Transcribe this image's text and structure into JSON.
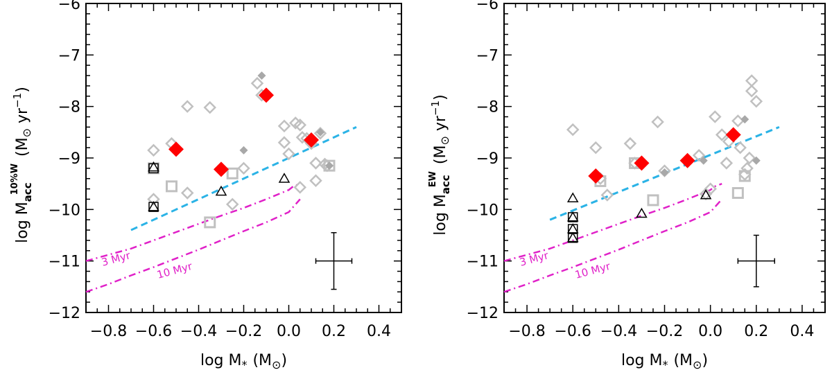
{
  "chart_data": [
    {
      "type": "scatter",
      "panel": "left",
      "xlabel_main": "log M",
      "xlabel_sub": "*",
      "xlabel_unit": "(M",
      "xlabel_unit_sub": "⊙",
      "xlabel_unit_end": ")",
      "ylabel_main": "log M",
      "ylabel_sub": "acc",
      "ylabel_sup": "10%W",
      "ylabel_unit": "(M",
      "ylabel_unit_sub": "⊙",
      "ylabel_unit_end": " yr",
      "ylabel_unit_exp": "−1",
      "ylabel_close": ")",
      "xlim": [
        -0.9,
        0.5
      ],
      "ylim": [
        -12,
        -6
      ],
      "xticks": [
        -0.8,
        -0.6,
        -0.4,
        -0.2,
        0.0,
        0.2,
        0.4
      ],
      "xtick_labels": [
        "−0.8",
        "−0.6",
        "−0.4",
        "−0.2",
        "0.0",
        "0.2",
        "0.4"
      ],
      "yticks": [
        -12,
        -11,
        -10,
        -9,
        -8,
        -7,
        -6
      ],
      "ytick_labels": [
        "−12",
        "−11",
        "−10",
        "−9",
        "−8",
        "−7",
        "−6"
      ],
      "red_diamonds": [
        [
          -0.5,
          -8.83
        ],
        [
          -0.3,
          -9.22
        ],
        [
          -0.1,
          -7.78
        ],
        [
          0.1,
          -8.65
        ]
      ],
      "gray_open_diamonds": [
        [
          -0.6,
          -8.85
        ],
        [
          -0.6,
          -9.8
        ],
        [
          -0.52,
          -8.72
        ],
        [
          -0.45,
          -8.0
        ],
        [
          -0.45,
          -9.68
        ],
        [
          -0.35,
          -8.02
        ],
        [
          -0.25,
          -9.9
        ],
        [
          -0.2,
          -9.2
        ],
        [
          -0.14,
          -7.55
        ],
        [
          -0.12,
          -7.78
        ],
        [
          -0.02,
          -8.7
        ],
        [
          -0.02,
          -8.38
        ],
        [
          0.0,
          -8.92
        ],
        [
          0.03,
          -8.32
        ],
        [
          0.05,
          -8.36
        ],
        [
          0.06,
          -8.6
        ],
        [
          0.08,
          -8.62
        ],
        [
          0.1,
          -8.72
        ],
        [
          0.12,
          -9.1
        ],
        [
          0.14,
          -8.52
        ],
        [
          0.16,
          -9.12
        ],
        [
          0.17,
          -9.15
        ],
        [
          0.12,
          -9.44
        ],
        [
          0.05,
          -9.57
        ]
      ],
      "gray_filled_diamonds": [
        [
          -0.12,
          -7.4
        ],
        [
          -0.2,
          -8.85
        ],
        [
          0.14,
          -8.5
        ],
        [
          0.18,
          -9.15
        ]
      ],
      "gray_squares": [
        [
          -0.6,
          -9.2
        ],
        [
          -0.52,
          -9.55
        ],
        [
          -0.35,
          -10.25
        ],
        [
          -0.25,
          -9.3
        ],
        [
          0.18,
          -9.15
        ]
      ],
      "black_squares": [
        [
          -0.6,
          -9.2
        ],
        [
          -0.6,
          -9.95
        ]
      ],
      "black_triangles": [
        [
          -0.6,
          -9.18
        ],
        [
          -0.6,
          -9.95
        ],
        [
          -0.3,
          -9.65
        ],
        [
          -0.02,
          -9.4
        ]
      ],
      "fit_line": {
        "color": "#2bb3e6",
        "x": [
          -0.7,
          0.3
        ],
        "y": [
          -10.4,
          -8.4
        ]
      },
      "isochrones": [
        {
          "name": "3 Myr",
          "label": "3 Myr",
          "color": "#e020c8",
          "x": [
            -0.9,
            -0.8,
            -0.7,
            -0.6,
            -0.5,
            -0.4,
            -0.3,
            -0.2,
            -0.1,
            0.0,
            0.02,
            0.05
          ],
          "y": [
            -11.0,
            -10.88,
            -10.76,
            -10.6,
            -10.44,
            -10.28,
            -10.12,
            -9.97,
            -9.8,
            -9.62,
            -9.55,
            -9.5
          ]
        },
        {
          "name": "10 Myr",
          "label": "10 Myr",
          "color": "#e020c8",
          "x": [
            -0.9,
            -0.8,
            -0.7,
            -0.6,
            -0.5,
            -0.4,
            -0.3,
            -0.2,
            -0.1,
            0.0,
            0.02,
            0.05
          ],
          "y": [
            -11.6,
            -11.45,
            -11.28,
            -11.12,
            -10.95,
            -10.78,
            -10.6,
            -10.42,
            -10.25,
            -10.05,
            -9.95,
            -9.8
          ]
        }
      ],
      "error_bar": {
        "x": 0.2,
        "y": -11.0,
        "xerr": 0.08,
        "yerr": 0.55
      }
    },
    {
      "type": "scatter",
      "panel": "right",
      "xlabel_main": "log M",
      "xlabel_sub": "*",
      "xlabel_unit": "(M",
      "xlabel_unit_sub": "⊙",
      "xlabel_unit_end": ")",
      "ylabel_main": "log M",
      "ylabel_sub": "acc",
      "ylabel_sup": "EW",
      "ylabel_unit": "(M",
      "ylabel_unit_sub": "⊙",
      "ylabel_unit_end": " yr",
      "ylabel_unit_exp": "−1",
      "ylabel_close": ")",
      "xlim": [
        -0.9,
        0.5
      ],
      "ylim": [
        -12,
        -6
      ],
      "xticks": [
        -0.8,
        -0.6,
        -0.4,
        -0.2,
        0.0,
        0.2,
        0.4
      ],
      "xtick_labels": [
        "−0.8",
        "−0.6",
        "−0.4",
        "−0.2",
        "0.0",
        "0.2",
        "0.4"
      ],
      "yticks": [
        -12,
        -11,
        -10,
        -9,
        -8,
        -7,
        -6
      ],
      "ytick_labels": [
        "−12",
        "−11",
        "−10",
        "−9",
        "−8",
        "−7",
        "−6"
      ],
      "red_diamonds": [
        [
          -0.5,
          -9.35
        ],
        [
          -0.3,
          -9.1
        ],
        [
          -0.1,
          -9.05
        ],
        [
          0.1,
          -8.55
        ]
      ],
      "gray_open_diamonds": [
        [
          -0.6,
          -8.45
        ],
        [
          -0.5,
          -8.8
        ],
        [
          -0.48,
          -9.4
        ],
        [
          -0.45,
          -9.72
        ],
        [
          -0.35,
          -8.72
        ],
        [
          -0.33,
          -9.1
        ],
        [
          -0.23,
          -8.3
        ],
        [
          -0.2,
          -9.25
        ],
        [
          -0.05,
          -8.95
        ],
        [
          -0.02,
          -9.7
        ],
        [
          0.02,
          -8.2
        ],
        [
          0.05,
          -8.55
        ],
        [
          0.07,
          -9.1
        ],
        [
          0.08,
          -8.68
        ],
        [
          0.12,
          -8.28
        ],
        [
          0.13,
          -8.8
        ],
        [
          0.16,
          -9.2
        ],
        [
          0.17,
          -9.0
        ],
        [
          0.18,
          -7.7
        ],
        [
          0.18,
          -7.5
        ],
        [
          0.2,
          -7.9
        ],
        [
          0.15,
          -9.32
        ],
        [
          0.0,
          -9.6
        ]
      ],
      "gray_filled_diamonds": [
        [
          -0.2,
          -9.28
        ],
        [
          0.15,
          -8.25
        ],
        [
          0.2,
          -9.05
        ],
        [
          -0.03,
          -9.05
        ]
      ],
      "gray_squares": [
        [
          -0.48,
          -9.45
        ],
        [
          -0.33,
          -9.1
        ],
        [
          -0.25,
          -9.82
        ],
        [
          0.12,
          -9.68
        ],
        [
          0.15,
          -9.35
        ]
      ],
      "black_squares": [
        [
          -0.6,
          -10.15
        ],
        [
          -0.6,
          -10.38
        ],
        [
          -0.6,
          -10.55
        ]
      ],
      "black_triangles": [
        [
          -0.6,
          -9.78
        ],
        [
          -0.6,
          -10.15
        ],
        [
          -0.6,
          -10.38
        ],
        [
          -0.6,
          -10.55
        ],
        [
          -0.3,
          -10.08
        ],
        [
          -0.02,
          -9.72
        ]
      ],
      "fit_line": {
        "color": "#2bb3e6",
        "x": [
          -0.7,
          0.3
        ],
        "y": [
          -10.2,
          -8.4
        ]
      },
      "isochrones": [
        {
          "name": "3 Myr",
          "label": "3 Myr",
          "color": "#e020c8",
          "x": [
            -0.9,
            -0.8,
            -0.7,
            -0.6,
            -0.5,
            -0.4,
            -0.3,
            -0.2,
            -0.1,
            0.0,
            0.02,
            0.05
          ],
          "y": [
            -11.0,
            -10.88,
            -10.76,
            -10.6,
            -10.44,
            -10.28,
            -10.12,
            -9.97,
            -9.8,
            -9.62,
            -9.55,
            -9.5
          ]
        },
        {
          "name": "10 Myr",
          "label": "10 Myr",
          "color": "#e020c8",
          "x": [
            -0.9,
            -0.8,
            -0.7,
            -0.6,
            -0.5,
            -0.4,
            -0.3,
            -0.2,
            -0.1,
            0.0,
            0.02,
            0.05
          ],
          "y": [
            -11.6,
            -11.45,
            -11.28,
            -11.12,
            -10.95,
            -10.78,
            -10.6,
            -10.42,
            -10.25,
            -10.05,
            -9.95,
            -9.8
          ]
        }
      ],
      "error_bar": {
        "x": 0.2,
        "y": -11.0,
        "xerr": 0.08,
        "yerr": 0.5
      }
    }
  ],
  "colors": {
    "red_marker": "#ff0000",
    "gray_marker": "#c0c0c0",
    "gray_filled": "#a8a8a8",
    "fit_line": "#2bb3e6",
    "isochrone": "#e020c8",
    "axis": "#000000"
  }
}
